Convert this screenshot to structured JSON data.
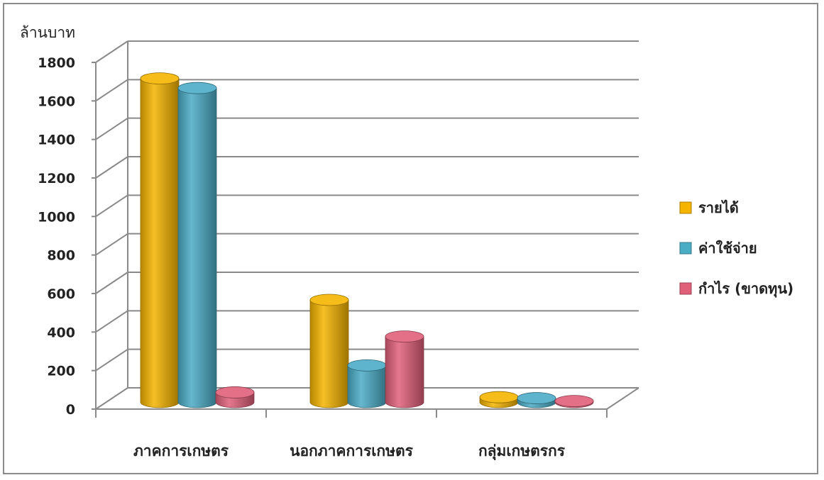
{
  "chart_data": {
    "type": "bar",
    "unit_label": "ล้านบาท",
    "categories": [
      "ภาคการเกษตร",
      "นอกภาคการเกษตร",
      "กลุ่มเกษตรกร"
    ],
    "series": [
      {
        "name": "รายได้",
        "color": "#F4B400",
        "values": [
          1680,
          530,
          25
        ]
      },
      {
        "name": "ค่าใช้จ่าย",
        "color": "#4BACC6",
        "values": [
          1630,
          190,
          20
        ]
      },
      {
        "name": "กำไร (ขาดทุน)",
        "color": "#E0607A",
        "values": [
          50,
          340,
          5
        ]
      }
    ],
    "y_ticks": [
      "0",
      "200",
      "400",
      "600",
      "800",
      "1000",
      "1200",
      "1400",
      "1600",
      "1800"
    ],
    "ylim": [
      0,
      1800
    ],
    "grid": true,
    "legend_position": "right",
    "bar_style": "3d-cylinder"
  }
}
